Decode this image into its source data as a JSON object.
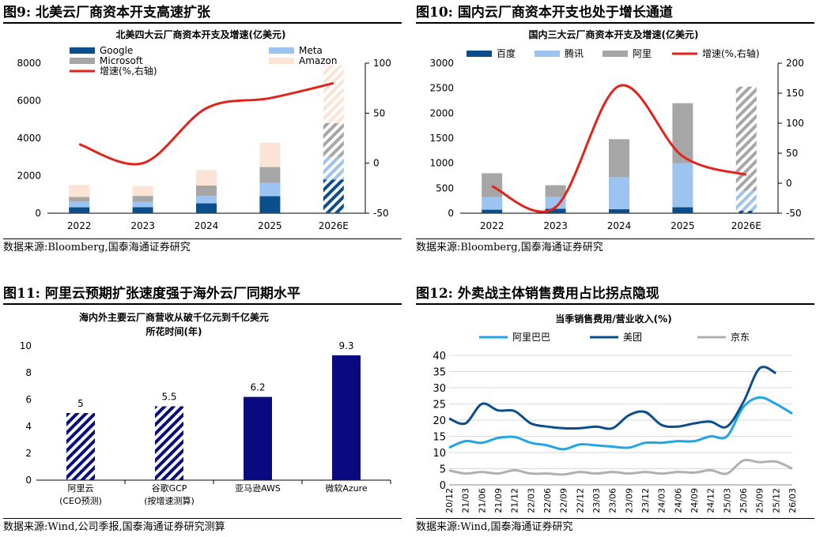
{
  "panels": [
    {
      "title": "图9: 北美云厂商资本开支高速扩张",
      "source": "数据来源:Bloomberg,国泰海通证券研究",
      "chart_data": {
        "type": "bar",
        "subtype": "stacked-bar-with-line",
        "title": "北美四大云厂商资本开支及增速(亿美元)",
        "categories": [
          "2022",
          "2023",
          "2024",
          "2025",
          "2026E"
        ],
        "series": [
          {
            "name": "Google",
            "values": [
              314,
              323,
              525,
              910,
              1800
            ],
            "color": "#0B4E8C"
          },
          {
            "name": "Meta",
            "values": [
              314,
              276,
              392,
              700,
              1200
            ],
            "color": "#9DC3F0"
          },
          {
            "name": "Microsoft",
            "values": [
              243,
              323,
              557,
              850,
              1800
            ],
            "color": "#A6A6A6"
          },
          {
            "name": "Amazon",
            "values": [
              635,
              526,
              830,
              1300,
              3100
            ],
            "color": "#FBE4D5"
          }
        ],
        "line": {
          "name": "增速(%,右轴)",
          "values": [
            19,
            0,
            55,
            65,
            80
          ],
          "color": "#E2231A"
        },
        "ylim": [
          0,
          8000
        ],
        "yticks": [
          0,
          2000,
          4000,
          6000,
          8000
        ],
        "y2lim": [
          -50,
          100
        ],
        "y2ticks": [
          -50,
          0,
          50,
          100
        ],
        "hatched_category": "2026E",
        "legend": "top-left"
      }
    },
    {
      "title": "图10: 国内云厂商资本开支也处于增长通道",
      "source": "数据来源:Bloomberg,国泰海通证券研究",
      "chart_data": {
        "type": "bar",
        "subtype": "stacked-bar-with-line",
        "title": "国内三大云厂商资本开支及增速(亿美元)",
        "categories": [
          "2022",
          "2023",
          "2024",
          "2025",
          "2026E"
        ],
        "series": [
          {
            "name": "百度",
            "values": [
              70,
              90,
              80,
              120,
              50
            ],
            "color": "#0B4E8C"
          },
          {
            "name": "腾讯",
            "values": [
              250,
              240,
              640,
              880,
              400
            ],
            "color": "#9DC3F0"
          },
          {
            "name": "阿里",
            "values": [
              480,
              230,
              760,
              1200,
              2080
            ],
            "color": "#A6A6A6"
          }
        ],
        "line": {
          "name": "增速(%,右轴)",
          "values": [
            -5,
            -40,
            162,
            45,
            14
          ],
          "color": "#E2231A"
        },
        "ylim": [
          0,
          3000
        ],
        "yticks": [
          0,
          500,
          1000,
          1500,
          2000,
          2500,
          3000
        ],
        "y2lim": [
          -50,
          200
        ],
        "y2ticks": [
          -50,
          0,
          50,
          100,
          150,
          200
        ],
        "hatched_category": "2026E",
        "legend": "top"
      }
    },
    {
      "title": "图11: 阿里云预期扩张速度强于海外云厂同期水平",
      "source": "数据来源:Wind,公司季报,国泰海通证券研究测算",
      "chart_data": {
        "type": "bar",
        "title": "海内外主要云厂商营收从破千亿元到千亿美元所花时间(年)",
        "title_lines": [
          "海内外主要云厂商营收从破千亿元到千亿美元",
          "所花时间(年)"
        ],
        "categories": [
          {
            "line1": "阿里云",
            "line2": "(CEO预测)"
          },
          {
            "line1": "谷歌GCP",
            "line2": "(按增速测算)"
          },
          {
            "line1": "亚马逊AWS",
            "line2": ""
          },
          {
            "line1": "微软Azure",
            "line2": ""
          }
        ],
        "values": [
          5,
          5.5,
          6.2,
          9.3
        ],
        "value_labels": [
          "5",
          "5.5",
          "6.2",
          "9.3"
        ],
        "hatched": [
          true,
          true,
          false,
          false
        ],
        "color": "#0A0A80",
        "ylim": [
          0,
          10
        ],
        "yticks": [
          0,
          2,
          4,
          6,
          8,
          10
        ]
      }
    },
    {
      "title": "图12: 外卖战主体销售费用占比拐点隐现",
      "source": "数据来源:Wind,国泰海通证券研究",
      "chart_data": {
        "type": "line",
        "title": "当季销售费用/营业收入(%)",
        "x": [
          "20/12",
          "21/03",
          "21/06",
          "21/09",
          "21/12",
          "22/03",
          "22/06",
          "22/09",
          "22/12",
          "23/03",
          "23/06",
          "23/09",
          "23/12",
          "24/03",
          "24/06",
          "24/09",
          "24/12",
          "25/03",
          "25/06",
          "25/09",
          "25/12",
          "26/03"
        ],
        "series": [
          {
            "name": "阿里巴巴",
            "color": "#1FA6E6",
            "values": [
              11.5,
              13.5,
              13,
              14.5,
              14.8,
              13,
              12.2,
              11,
              12.5,
              12.2,
              11.8,
              11.5,
              13,
              13,
              13.5,
              13.5,
              15,
              15,
              24,
              27,
              25,
              22
            ]
          },
          {
            "name": "美团",
            "color": "#0B4E8C",
            "values": [
              20.5,
              19,
              25,
              23,
              22.8,
              19,
              18,
              17.5,
              17.5,
              18,
              17.5,
              21.5,
              22.5,
              18.5,
              18,
              19,
              19.5,
              18,
              25.5,
              36,
              34.5,
              null
            ]
          },
          {
            "name": "京东",
            "color": "#B0B0B0",
            "values": [
              4.5,
              3.5,
              4,
              3.5,
              4.5,
              3.5,
              3.5,
              3.2,
              4,
              3.5,
              4,
              3.5,
              4,
              3.5,
              4,
              3.8,
              4.5,
              3.5,
              7.5,
              7,
              7.2,
              5
            ]
          }
        ],
        "ylim": [
          0,
          40
        ],
        "yticks": [
          0,
          5,
          10,
          15,
          20,
          25,
          30,
          35,
          40
        ],
        "legend": "top"
      }
    }
  ]
}
